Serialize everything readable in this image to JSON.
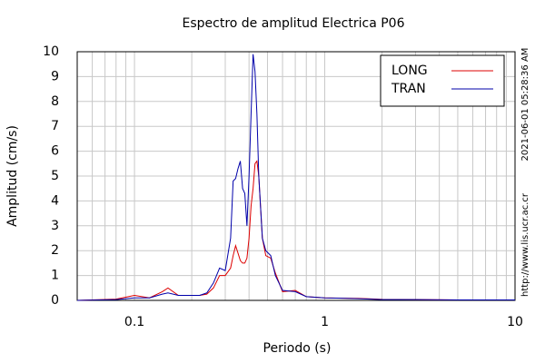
{
  "chart_data": {
    "type": "line",
    "title": "Espectro de amplitud Electrica P06",
    "xlabel": "Periodo (s)",
    "ylabel": "Amplitud (cm/s)",
    "side_texts": [
      "2021-06-01 05:28:36 AM",
      "http://www.lis.ucr.ac.cr"
    ],
    "x": [
      0.05,
      0.08,
      0.1,
      0.12,
      0.14,
      0.15,
      0.17,
      0.2,
      0.22,
      0.24,
      0.26,
      0.28,
      0.3,
      0.32,
      0.33,
      0.34,
      0.35,
      0.36,
      0.37,
      0.38,
      0.39,
      0.4,
      0.41,
      0.42,
      0.43,
      0.44,
      0.45,
      0.47,
      0.49,
      0.52,
      0.55,
      0.6,
      0.7,
      0.8,
      1.0,
      1.5,
      2,
      3,
      5,
      10
    ],
    "series": [
      {
        "name": "LONG",
        "color": "#dd0000",
        "values": [
          0,
          0.05,
          0.2,
          0.1,
          0.35,
          0.5,
          0.2,
          0.2,
          0.2,
          0.25,
          0.5,
          1.0,
          1.0,
          1.3,
          1.8,
          2.2,
          1.9,
          1.6,
          1.5,
          1.5,
          1.7,
          2.5,
          3.8,
          4.5,
          5.5,
          5.6,
          5.0,
          2.5,
          1.8,
          1.7,
          1.1,
          0.35,
          0.4,
          0.15,
          0.1,
          0.08,
          0.04,
          0.03,
          0.02,
          0.02
        ]
      },
      {
        "name": "TRAN",
        "color": "#0000aa",
        "values": [
          0,
          0.03,
          0.1,
          0.1,
          0.25,
          0.3,
          0.2,
          0.2,
          0.2,
          0.3,
          0.7,
          1.3,
          1.2,
          2.5,
          4.8,
          4.9,
          5.3,
          5.6,
          4.5,
          4.3,
          3.0,
          5.0,
          7.5,
          9.9,
          9.2,
          7.5,
          5.0,
          2.5,
          2.0,
          1.8,
          1.0,
          0.4,
          0.35,
          0.15,
          0.1,
          0.07,
          0.03,
          0.03,
          0.02,
          0.02
        ]
      }
    ],
    "xscale": "log",
    "xlim": [
      0.05,
      10
    ],
    "xticks": [
      0.1,
      1,
      10
    ],
    "xgrid_minor": [
      0.06,
      0.07,
      0.08,
      0.09,
      0.2,
      0.3,
      0.4,
      0.5,
      0.6,
      0.7,
      0.8,
      0.9,
      2,
      3,
      4,
      5,
      6,
      7,
      8,
      9
    ],
    "ylim": [
      0,
      10
    ],
    "yticks": [
      0,
      1,
      2,
      3,
      4,
      5,
      6,
      7,
      8,
      9,
      10
    ],
    "grid": true,
    "legend": "upper right"
  }
}
